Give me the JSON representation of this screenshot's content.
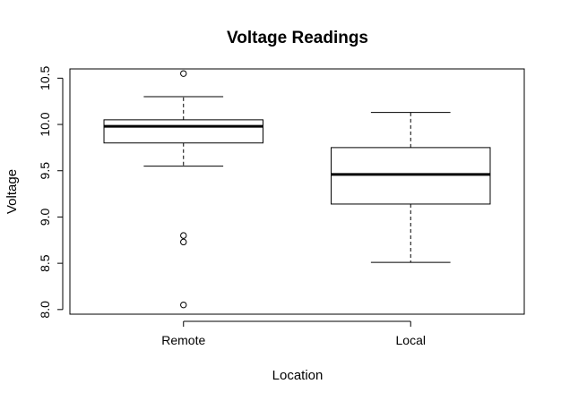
{
  "chart_data": {
    "type": "box",
    "title": "Voltage Readings",
    "xlabel": "Location",
    "ylabel": "Voltage",
    "ylim": [
      7.95,
      10.6
    ],
    "yticks": [
      "8.0",
      "8.5",
      "9.0",
      "9.5",
      "10.0",
      "10.5"
    ],
    "grid": false,
    "categories": [
      "Remote",
      "Local"
    ],
    "boxes": [
      {
        "category": "Remote",
        "whisker_low": 9.55,
        "q1": 9.8,
        "median": 9.98,
        "q3": 10.05,
        "whisker_high": 10.3,
        "outliers": [
          10.55,
          8.8,
          8.73,
          8.05
        ]
      },
      {
        "category": "Local",
        "whisker_low": 8.51,
        "q1": 9.14,
        "median": 9.46,
        "q3": 9.75,
        "whisker_high": 10.13,
        "outliers": []
      }
    ]
  }
}
